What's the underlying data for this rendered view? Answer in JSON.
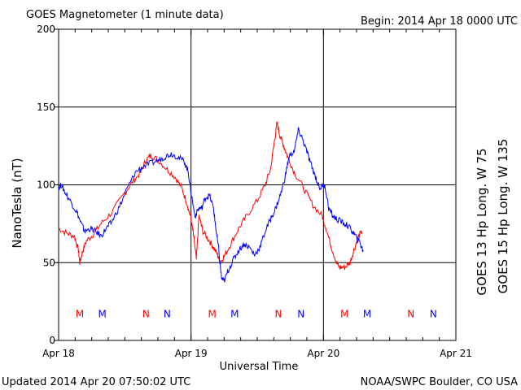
{
  "header": {
    "title": "GOES Magnetometer (1 minute data)",
    "begin": "Begin:  2014 Apr 18 0000 UTC"
  },
  "footer": {
    "updated": "Updated 2014 Apr 20 07:50:02 UTC",
    "credit": "NOAA/SWPC Boulder, CO USA"
  },
  "chart_data": {
    "type": "line",
    "title": "GOES Magnetometer (1 minute data)",
    "xlabel": "Universal Time",
    "ylabel": "NanoTesla (nT)",
    "x_unit": "days since 2014 Apr 18 0000 UTC",
    "xlim": [
      0,
      3
    ],
    "ylim": [
      0,
      200
    ],
    "y_ticks": [
      0,
      50,
      100,
      150,
      200
    ],
    "x_ticks": [
      {
        "x": 0,
        "label": "Apr 18"
      },
      {
        "x": 1,
        "label": "Apr 19"
      },
      {
        "x": 2,
        "label": "Apr 20"
      },
      {
        "x": 3,
        "label": "Apr 21"
      }
    ],
    "grid": true,
    "legend_placement": "right-vertical",
    "series": [
      {
        "name": "GOES 13 Hp  Long. W 75",
        "color": "#ff0000",
        "points": [
          [
            0.0,
            72
          ],
          [
            0.06,
            69
          ],
          [
            0.12,
            67
          ],
          [
            0.15,
            58
          ],
          [
            0.16,
            50
          ],
          [
            0.18,
            57
          ],
          [
            0.21,
            64
          ],
          [
            0.26,
            68
          ],
          [
            0.32,
            75
          ],
          [
            0.4,
            82
          ],
          [
            0.5,
            95
          ],
          [
            0.56,
            102
          ],
          [
            0.62,
            108
          ],
          [
            0.66,
            116
          ],
          [
            0.7,
            119
          ],
          [
            0.75,
            116
          ],
          [
            0.82,
            110
          ],
          [
            0.88,
            105
          ],
          [
            0.93,
            98
          ],
          [
            0.97,
            88
          ],
          [
            1.0,
            78
          ],
          [
            1.02,
            67
          ],
          [
            1.04,
            52
          ],
          [
            1.06,
            80
          ],
          [
            1.09,
            70
          ],
          [
            1.13,
            65
          ],
          [
            1.17,
            60
          ],
          [
            1.2,
            55
          ],
          [
            1.22,
            50
          ],
          [
            1.25,
            54
          ],
          [
            1.3,
            62
          ],
          [
            1.36,
            72
          ],
          [
            1.42,
            80
          ],
          [
            1.5,
            90
          ],
          [
            1.56,
            100
          ],
          [
            1.6,
            110
          ],
          [
            1.63,
            128
          ],
          [
            1.65,
            140
          ],
          [
            1.67,
            132
          ],
          [
            1.7,
            125
          ],
          [
            1.73,
            118
          ],
          [
            1.78,
            108
          ],
          [
            1.85,
            98
          ],
          [
            1.92,
            87
          ],
          [
            1.99,
            80
          ],
          [
            2.02,
            72
          ],
          [
            2.06,
            60
          ],
          [
            2.1,
            50
          ],
          [
            2.12,
            47
          ],
          [
            2.16,
            47
          ],
          [
            2.2,
            50
          ],
          [
            2.23,
            58
          ],
          [
            2.26,
            66
          ],
          [
            2.29,
            70
          ]
        ]
      },
      {
        "name": "GOES 15 Hp  Long. W 135",
        "color": "#0000ff",
        "points": [
          [
            0.0,
            98
          ],
          [
            0.02,
            100
          ],
          [
            0.05,
            95
          ],
          [
            0.1,
            88
          ],
          [
            0.14,
            82
          ],
          [
            0.17,
            75
          ],
          [
            0.2,
            70
          ],
          [
            0.24,
            72
          ],
          [
            0.28,
            70
          ],
          [
            0.32,
            67
          ],
          [
            0.36,
            72
          ],
          [
            0.4,
            76
          ],
          [
            0.46,
            86
          ],
          [
            0.52,
            98
          ],
          [
            0.58,
            108
          ],
          [
            0.64,
            112
          ],
          [
            0.7,
            114
          ],
          [
            0.76,
            116
          ],
          [
            0.8,
            118
          ],
          [
            0.85,
            120
          ],
          [
            0.9,
            118
          ],
          [
            0.95,
            115
          ],
          [
            0.98,
            108
          ],
          [
            1.0,
            95
          ],
          [
            1.03,
            80
          ],
          [
            1.06,
            85
          ],
          [
            1.08,
            85
          ],
          [
            1.11,
            92
          ],
          [
            1.14,
            93
          ],
          [
            1.17,
            85
          ],
          [
            1.19,
            70
          ],
          [
            1.21,
            58
          ],
          [
            1.23,
            40
          ],
          [
            1.25,
            38
          ],
          [
            1.28,
            45
          ],
          [
            1.32,
            52
          ],
          [
            1.36,
            58
          ],
          [
            1.4,
            62
          ],
          [
            1.44,
            60
          ],
          [
            1.48,
            55
          ],
          [
            1.52,
            60
          ],
          [
            1.56,
            70
          ],
          [
            1.6,
            78
          ],
          [
            1.64,
            85
          ],
          [
            1.68,
            95
          ],
          [
            1.71,
            105
          ],
          [
            1.74,
            118
          ],
          [
            1.78,
            122
          ],
          [
            1.81,
            135
          ],
          [
            1.84,
            130
          ],
          [
            1.88,
            120
          ],
          [
            1.91,
            112
          ],
          [
            1.94,
            105
          ],
          [
            1.97,
            98
          ],
          [
            2.01,
            100
          ],
          [
            2.04,
            85
          ],
          [
            2.07,
            80
          ],
          [
            2.1,
            78
          ],
          [
            2.14,
            76
          ],
          [
            2.18,
            74
          ],
          [
            2.22,
            70
          ],
          [
            2.25,
            66
          ],
          [
            2.28,
            62
          ],
          [
            2.3,
            57
          ]
        ]
      }
    ],
    "mn_markers": [
      {
        "x": 0.16,
        "label": "M",
        "color": "#ff0000"
      },
      {
        "x": 0.33,
        "label": "M",
        "color": "#0000ff"
      },
      {
        "x": 0.66,
        "label": "N",
        "color": "#ff0000"
      },
      {
        "x": 0.82,
        "label": "N",
        "color": "#0000ff"
      },
      {
        "x": 1.16,
        "label": "M",
        "color": "#ff0000"
      },
      {
        "x": 1.33,
        "label": "M",
        "color": "#0000ff"
      },
      {
        "x": 1.66,
        "label": "N",
        "color": "#ff0000"
      },
      {
        "x": 1.83,
        "label": "N",
        "color": "#0000ff"
      },
      {
        "x": 2.16,
        "label": "M",
        "color": "#ff0000"
      },
      {
        "x": 2.33,
        "label": "M",
        "color": "#0000ff"
      },
      {
        "x": 2.66,
        "label": "N",
        "color": "#ff0000"
      },
      {
        "x": 2.83,
        "label": "N",
        "color": "#0000ff"
      }
    ],
    "mn_level": 17
  }
}
